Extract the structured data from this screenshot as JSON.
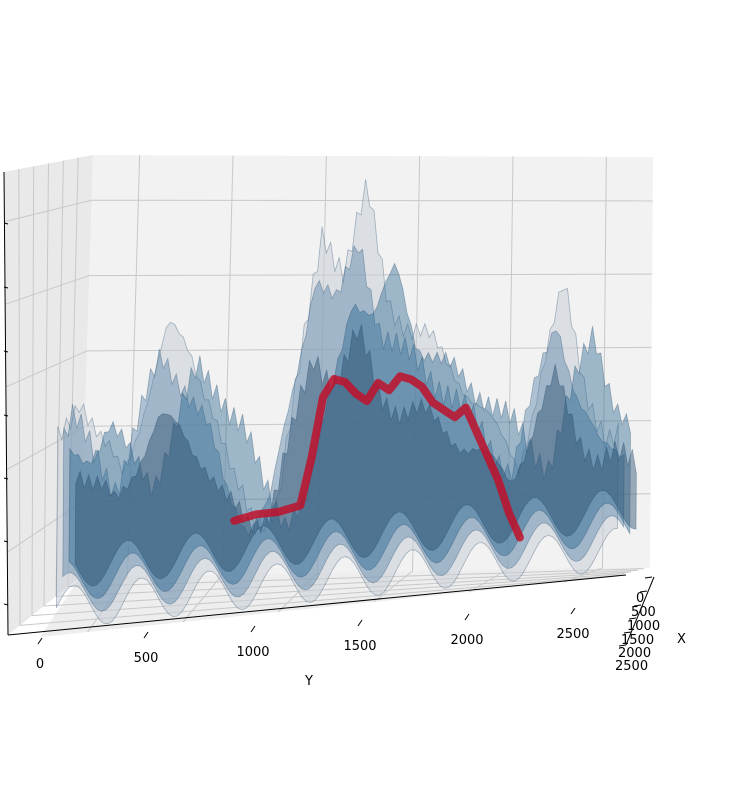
{
  "chart_data": {
    "type": "surface",
    "projection": "3d",
    "xlabel": "X",
    "ylabel": "Y",
    "zlabel": "",
    "x_ticks": [
      "0",
      "500",
      "1000",
      "1500",
      "2000",
      "2500"
    ],
    "y_ticks": [
      "0",
      "500",
      "1000",
      "1500",
      "2000",
      "2500"
    ],
    "z_ticks": [
      "",
      "",
      "",
      "",
      "",
      "",
      ""
    ],
    "grid": true,
    "surface_color": "#1f5f8b",
    "path_color": "#c0102a",
    "surface_profile_y": [
      0,
      100,
      200,
      300,
      400,
      500,
      600,
      700,
      800,
      900,
      1000,
      1100,
      1200,
      1300,
      1400,
      1500,
      1600,
      1700,
      1800,
      1900,
      2000,
      2100,
      2200,
      2300,
      2400,
      2500
    ],
    "surface_profile_z": [
      0.45,
      0.55,
      0.42,
      0.35,
      0.52,
      0.68,
      0.62,
      0.5,
      0.3,
      0.2,
      0.25,
      0.55,
      0.88,
      0.78,
      0.95,
      0.7,
      0.62,
      0.58,
      0.52,
      0.43,
      0.35,
      0.28,
      0.48,
      0.68,
      0.45,
      0.3
    ],
    "path": {
      "y": [
        750,
        850,
        950,
        1050,
        1100,
        1150,
        1200,
        1250,
        1300,
        1350,
        1400,
        1450,
        1500,
        1550,
        1600,
        1650,
        1700,
        1750,
        1800,
        1850,
        1900,
        1950,
        2000,
        2050
      ],
      "z": [
        0.15,
        0.16,
        0.16,
        0.17,
        0.28,
        0.42,
        0.46,
        0.45,
        0.42,
        0.4,
        0.44,
        0.42,
        0.45,
        0.44,
        0.42,
        0.38,
        0.36,
        0.34,
        0.36,
        0.3,
        0.24,
        0.18,
        0.1,
        0.04
      ]
    }
  }
}
